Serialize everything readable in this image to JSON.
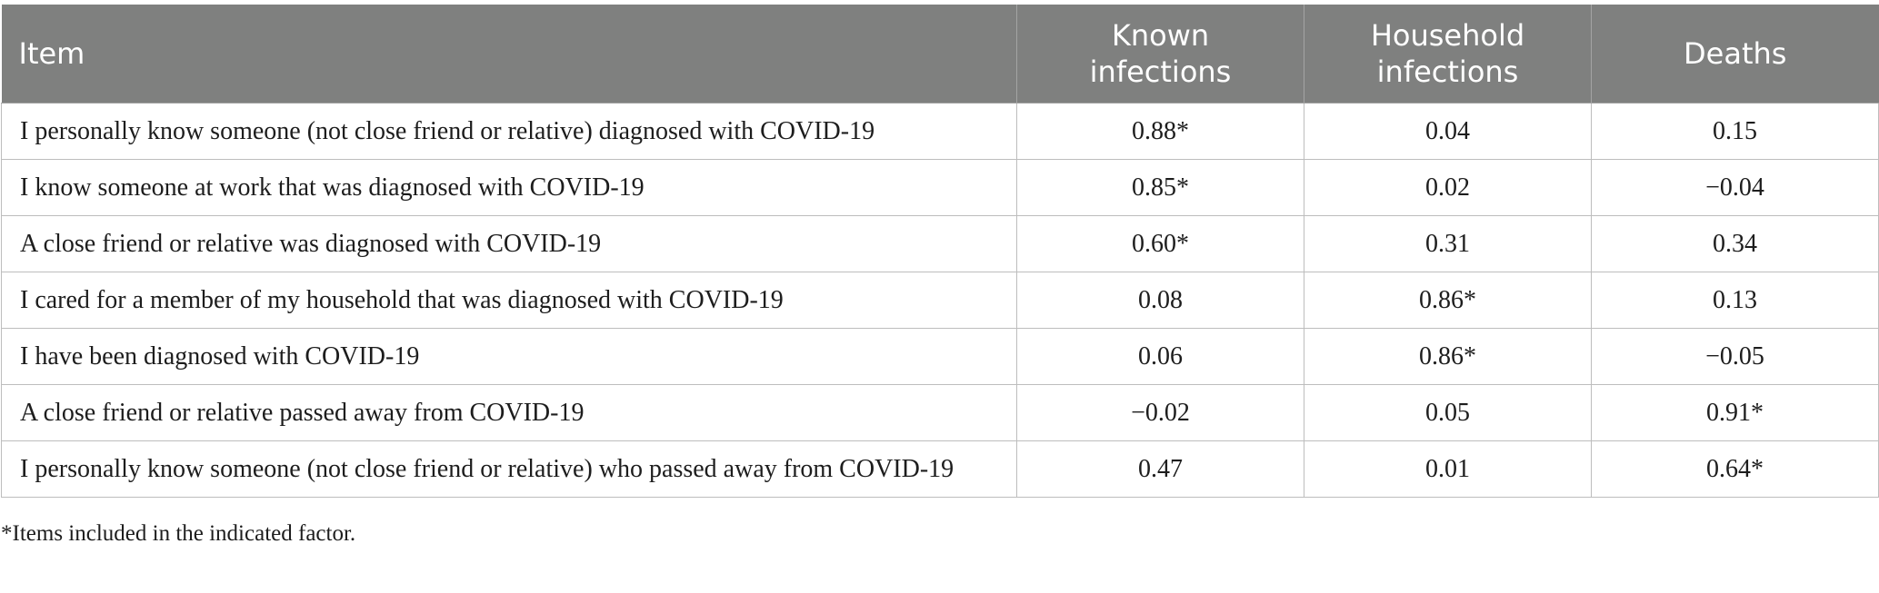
{
  "table": {
    "headers": {
      "item": "Item",
      "known_1": "Known",
      "known_2": "infections",
      "household_1": "Household",
      "household_2": "infections",
      "deaths": "Deaths"
    },
    "rows": [
      {
        "item": "I personally know someone (not close friend or relative) diagnosed with COVID-19",
        "known": "0.88*",
        "household": "0.04",
        "deaths": "0.15"
      },
      {
        "item": "I know someone at work that was diagnosed with COVID-19",
        "known": "0.85*",
        "household": "0.02",
        "deaths": "−0.04"
      },
      {
        "item": "A close friend or relative was diagnosed with COVID-19",
        "known": "0.60*",
        "household": "0.31",
        "deaths": "0.34"
      },
      {
        "item": "I cared for a member of my household that was diagnosed with COVID-19",
        "known": "0.08",
        "household": "0.86*",
        "deaths": "0.13"
      },
      {
        "item": "I have been diagnosed with COVID-19",
        "known": "0.06",
        "household": "0.86*",
        "deaths": "−0.05"
      },
      {
        "item": "A close friend or relative passed away from COVID-19",
        "known": "−0.02",
        "household": "0.05",
        "deaths": "0.91*"
      },
      {
        "item": "I personally know someone (not close friend or relative) who passed away from COVID-19",
        "known": "0.47",
        "household": "0.01",
        "deaths": "0.64*"
      }
    ]
  },
  "footnote": "*Items included in the indicated factor."
}
